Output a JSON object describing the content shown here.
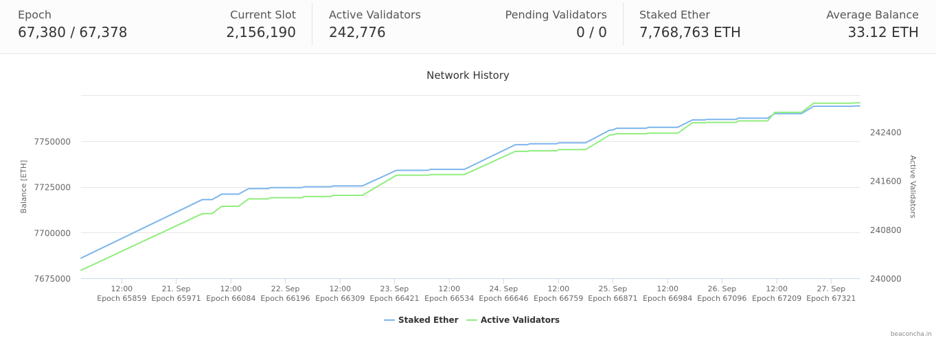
{
  "stats": {
    "epoch": {
      "label": "Epoch",
      "value": "67,380 / 67,378"
    },
    "current_slot": {
      "label": "Current Slot",
      "value": "2,156,190"
    },
    "active_validators": {
      "label": "Active Validators",
      "value": "242,776"
    },
    "pending_validators": {
      "label": "Pending Validators",
      "value": "0 / 0"
    },
    "staked_ether": {
      "label": "Staked Ether",
      "value": "7,768,763 ETH"
    },
    "average_balance": {
      "label": "Average Balance",
      "value": "33.12 ETH"
    }
  },
  "credit": "beaconcha.in",
  "colors": {
    "staked": "#7cb5ec",
    "validators": "#90ed7d",
    "grid": "#e6e6e6",
    "axis": "#ccd6eb"
  },
  "chart_data": {
    "type": "line",
    "title": "Network History",
    "ylabel_left": "Balance [ETH]",
    "ylabel_right": "Active Validators",
    "ylim_left": [
      7675000,
      7775000
    ],
    "ylim_right": [
      240000,
      243000
    ],
    "yticks_left": [
      "7675000",
      "7700000",
      "7725000",
      "7750000"
    ],
    "yticks_right": [
      "240000",
      "240800",
      "241600",
      "242400"
    ],
    "xlim": [
      65775,
      67380
    ],
    "xticks": [
      {
        "epoch": 65859,
        "top": "12:00",
        "bottom": "Epoch 65859"
      },
      {
        "epoch": 65971,
        "top": "21. Sep",
        "bottom": "Epoch 65971"
      },
      {
        "epoch": 66084,
        "top": "12:00",
        "bottom": "Epoch 66084"
      },
      {
        "epoch": 66196,
        "top": "22. Sep",
        "bottom": "Epoch 66196"
      },
      {
        "epoch": 66309,
        "top": "12:00",
        "bottom": "Epoch 66309"
      },
      {
        "epoch": 66421,
        "top": "23. Sep",
        "bottom": "Epoch 66421"
      },
      {
        "epoch": 66534,
        "top": "12:00",
        "bottom": "Epoch 66534"
      },
      {
        "epoch": 66646,
        "top": "24. Sep",
        "bottom": "Epoch 66646"
      },
      {
        "epoch": 66759,
        "top": "12:00",
        "bottom": "Epoch 66759"
      },
      {
        "epoch": 66871,
        "top": "25. Sep",
        "bottom": "Epoch 66871"
      },
      {
        "epoch": 66984,
        "top": "12:00",
        "bottom": "Epoch 66984"
      },
      {
        "epoch": 67096,
        "top": "26. Sep",
        "bottom": "Epoch 67096"
      },
      {
        "epoch": 67209,
        "top": "12:00",
        "bottom": "Epoch 67209"
      },
      {
        "epoch": 67321,
        "top": "27. Sep",
        "bottom": "Epoch 67321"
      }
    ],
    "legend": "bottom-center",
    "series": [
      {
        "name": "Staked Ether",
        "axis": "left",
        "points": [
          [
            65775,
            7686000
          ],
          [
            66025,
            7718000
          ],
          [
            66030,
            7718000
          ],
          [
            66045,
            7718000
          ],
          [
            66065,
            7721000
          ],
          [
            66100,
            7721000
          ],
          [
            66120,
            7724000
          ],
          [
            66160,
            7724000
          ],
          [
            66165,
            7724500
          ],
          [
            66230,
            7724500
          ],
          [
            66235,
            7725000
          ],
          [
            66290,
            7725000
          ],
          [
            66295,
            7725500
          ],
          [
            66355,
            7725500
          ],
          [
            66425,
            7734000
          ],
          [
            66490,
            7734000
          ],
          [
            66495,
            7734500
          ],
          [
            66565,
            7734500
          ],
          [
            66670,
            7748000
          ],
          [
            66695,
            7748000
          ],
          [
            66700,
            7748500
          ],
          [
            66755,
            7748500
          ],
          [
            66760,
            7749000
          ],
          [
            66815,
            7749000
          ],
          [
            66865,
            7756000
          ],
          [
            66870,
            7756000
          ],
          [
            66880,
            7757000
          ],
          [
            66940,
            7757000
          ],
          [
            66945,
            7757500
          ],
          [
            67005,
            7757500
          ],
          [
            67035,
            7761500
          ],
          [
            67060,
            7761500
          ],
          [
            67065,
            7761800
          ],
          [
            67125,
            7761800
          ],
          [
            67130,
            7762500
          ],
          [
            67190,
            7762500
          ],
          [
            67205,
            7765000
          ],
          [
            67260,
            7765000
          ],
          [
            67285,
            7769000
          ],
          [
            67360,
            7769000
          ],
          [
            67380,
            7769200
          ]
        ]
      },
      {
        "name": "Active Validators",
        "axis": "right",
        "points": [
          [
            65775,
            240130
          ],
          [
            66025,
            241060
          ],
          [
            66030,
            241060
          ],
          [
            66045,
            241060
          ],
          [
            66065,
            241180
          ],
          [
            66100,
            241180
          ],
          [
            66120,
            241300
          ],
          [
            66160,
            241300
          ],
          [
            66165,
            241320
          ],
          [
            66230,
            241320
          ],
          [
            66235,
            241340
          ],
          [
            66290,
            241340
          ],
          [
            66295,
            241360
          ],
          [
            66355,
            241360
          ],
          [
            66425,
            241690
          ],
          [
            66490,
            241690
          ],
          [
            66495,
            241700
          ],
          [
            66565,
            241700
          ],
          [
            66670,
            242080
          ],
          [
            66695,
            242080
          ],
          [
            66700,
            242090
          ],
          [
            66755,
            242090
          ],
          [
            66760,
            242110
          ],
          [
            66815,
            242110
          ],
          [
            66865,
            242350
          ],
          [
            66870,
            242350
          ],
          [
            66880,
            242370
          ],
          [
            66940,
            242370
          ],
          [
            66945,
            242380
          ],
          [
            67005,
            242380
          ],
          [
            67035,
            242550
          ],
          [
            67060,
            242550
          ],
          [
            67065,
            242555
          ],
          [
            67125,
            242555
          ],
          [
            67130,
            242580
          ],
          [
            67190,
            242580
          ],
          [
            67205,
            242720
          ],
          [
            67260,
            242720
          ],
          [
            67285,
            242870
          ],
          [
            67360,
            242870
          ],
          [
            67380,
            242880
          ]
        ]
      }
    ]
  }
}
